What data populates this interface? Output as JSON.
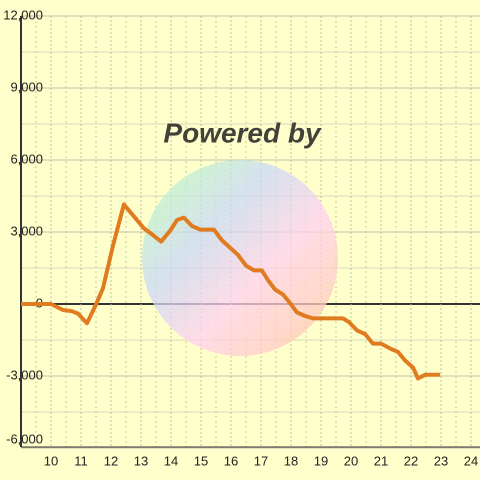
{
  "chart_data": {
    "type": "line",
    "watermark": "Powered by",
    "x": [
      9,
      10,
      10.4,
      10.7,
      10.9,
      11.2,
      11.47,
      11.73,
      12.07,
      12.43,
      12.73,
      13.1,
      13.37,
      13.67,
      13.97,
      14.2,
      14.43,
      14.7,
      14.97,
      15.43,
      15.7,
      16.23,
      16.5,
      16.77,
      17.03,
      17.23,
      17.47,
      17.73,
      17.93,
      18.2,
      18.47,
      18.73,
      19.73,
      19.93,
      20.2,
      20.47,
      20.73,
      21,
      21.3,
      21.57,
      21.8,
      22.07,
      22.23,
      22.47,
      22.97
    ],
    "series": [
      {
        "color": "#e07b20",
        "values": [
          0,
          0,
          -250,
          -300,
          -400,
          -800,
          -100,
          650,
          2450,
          4150,
          3700,
          3150,
          2900,
          2600,
          3050,
          3500,
          3600,
          3250,
          3100,
          3100,
          2650,
          2050,
          1600,
          1400,
          1400,
          1000,
          600,
          400,
          100,
          -350,
          -500,
          -600,
          -600,
          -750,
          -1100,
          -1250,
          -1650,
          -1650,
          -1850,
          -2000,
          -2350,
          -2650,
          -3100,
          -2950,
          -2950
        ]
      }
    ],
    "xlim": [
      9,
      24.3
    ],
    "ylim": [
      -6000,
      12000
    ],
    "xticks": [
      10,
      11,
      12,
      13,
      14,
      15,
      16,
      17,
      18,
      19,
      20,
      21,
      22,
      23,
      24
    ],
    "yticks": [
      {
        "value": -6000,
        "label": "-6,000"
      },
      {
        "value": -3000,
        "label": "-3,000"
      },
      0,
      {
        "value": 3000,
        "label": "3,000"
      },
      {
        "value": 6000,
        "label": "6,000"
      },
      {
        "value": 9000,
        "label": "9,000"
      },
      {
        "value": 12000,
        "label": "12,000"
      }
    ],
    "grid": true
  }
}
